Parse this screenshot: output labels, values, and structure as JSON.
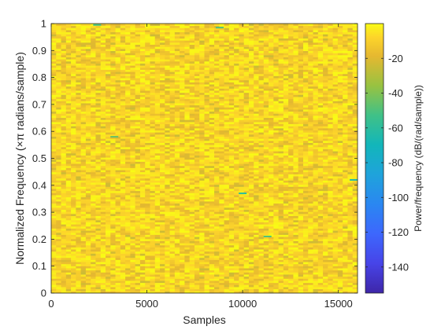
{
  "chart_data": {
    "type": "heatmap",
    "title": "",
    "xlabel": "Samples",
    "ylabel": "Normalized Frequency (×π radians/sample)",
    "colorbar_label": "Power/frequency (dB/(rad/sample))",
    "xlim": [
      0,
      16000
    ],
    "ylim": [
      0,
      1
    ],
    "clim": [
      -155,
      0
    ],
    "xticks": [
      0,
      5000,
      10000,
      15000
    ],
    "xtick_labels": [
      "0",
      "5000",
      "10000",
      "15000"
    ],
    "yticks": [
      0,
      0.1,
      0.2,
      0.3,
      0.4,
      0.5,
      0.6,
      0.7,
      0.8,
      0.9,
      1
    ],
    "ytick_labels": [
      "0",
      "0.1",
      "0.2",
      "0.3",
      "0.4",
      "0.5",
      "0.6",
      "0.7",
      "0.8",
      "0.9",
      "1"
    ],
    "cbar_ticks": [
      -20,
      -40,
      -60,
      -80,
      -100,
      -120,
      -140
    ],
    "cbar_tick_labels": [
      "-20",
      "-40",
      "-60",
      "-80",
      "-100",
      "-120",
      "-140"
    ],
    "colormap": "parula",
    "grid": false,
    "n_time_bins": 62,
    "n_freq_bins": 129,
    "typical_level_db": [
      -25,
      0
    ],
    "sparse_low_points": [
      {
        "x": 2400,
        "y": 0.995,
        "db": -55
      },
      {
        "x": 8800,
        "y": 0.985,
        "db": -50
      },
      {
        "x": 10000,
        "y": 0.37,
        "db": -60
      },
      {
        "x": 15800,
        "y": 0.42,
        "db": -65
      },
      {
        "x": 3300,
        "y": 0.58,
        "db": -45
      },
      {
        "x": 11300,
        "y": 0.21,
        "db": -50
      }
    ]
  }
}
